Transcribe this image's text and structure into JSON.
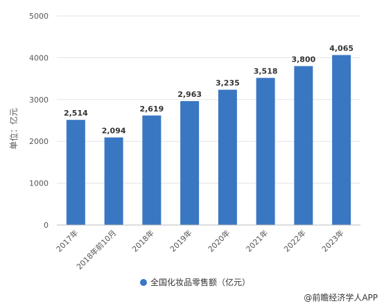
{
  "chart_data": {
    "type": "bar",
    "categories": [
      "2017年",
      "2018年前10月",
      "2018年",
      "2019年",
      "2020年",
      "2021年",
      "2022年",
      "2023年"
    ],
    "series": [
      {
        "name": "全国化妆品零售额（亿元）",
        "values": [
          2514,
          2094,
          2619,
          2963,
          3235,
          3518,
          3800,
          4065
        ],
        "labels": [
          "2,514",
          "2,094",
          "2,619",
          "2,963",
          "3,235",
          "3,518",
          "3,800",
          "4,065"
        ]
      }
    ],
    "ylabel": "单位：亿元",
    "ylim": [
      0,
      5000
    ],
    "yticks": [
      "0",
      "1000",
      "2000",
      "3000",
      "4000",
      "5000"
    ],
    "grid": true,
    "legend": "bottom-center",
    "bar_color": "#3a77c2"
  },
  "source_credit": "@前瞻经济学人APP"
}
